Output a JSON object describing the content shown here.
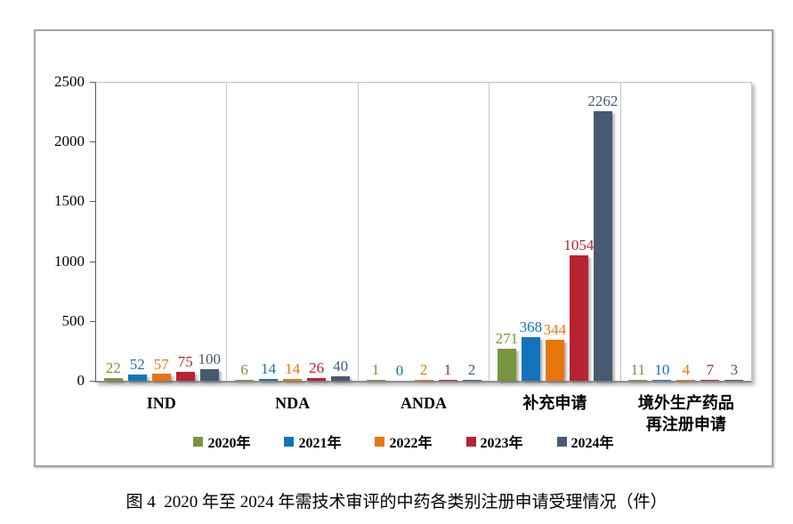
{
  "figure": {
    "caption": "图 4  2020 年至 2024 年需技术审评的中药各类别注册申请受理情况（件）"
  },
  "chart_data": {
    "type": "bar",
    "title": "",
    "xlabel": "",
    "ylabel": "",
    "categories": [
      "IND",
      "NDA",
      "ANDA",
      "补充申请",
      "境外生产药品\n再注册申请"
    ],
    "series": [
      {
        "name": "2020年",
        "color": "#77953f",
        "values": [
          22,
          6,
          1,
          271,
          11
        ]
      },
      {
        "name": "2021年",
        "color": "#1374bc",
        "values": [
          52,
          14,
          0,
          368,
          10
        ]
      },
      {
        "name": "2022年",
        "color": "#e8760c",
        "values": [
          57,
          14,
          2,
          344,
          4
        ]
      },
      {
        "name": "2023年",
        "color": "#b62331",
        "values": [
          75,
          26,
          1,
          1054,
          7
        ]
      },
      {
        "name": "2024年",
        "color": "#465a72",
        "values": [
          100,
          40,
          2,
          2262,
          3
        ]
      }
    ],
    "ylim": [
      0,
      2500
    ],
    "yticks": [
      0,
      500,
      1000,
      1500,
      2000,
      2500
    ],
    "legend_position": "bottom",
    "grid": "none",
    "panel_separators": true,
    "data_labels": true
  }
}
